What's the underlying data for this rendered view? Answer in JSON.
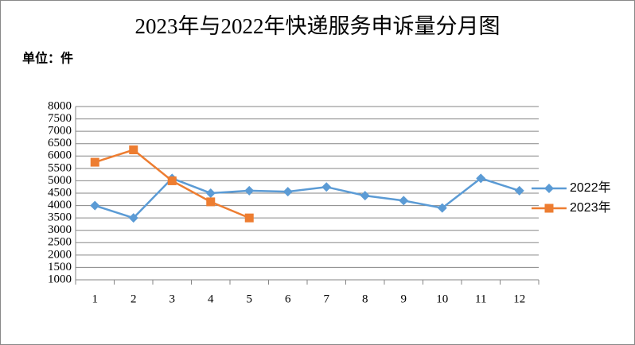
{
  "chart_data": {
    "type": "line",
    "title": "2023年与2022年快递服务申诉量分月图",
    "subtitle": "单位：件",
    "categories": [
      "1",
      "2",
      "3",
      "4",
      "5",
      "6",
      "7",
      "8",
      "9",
      "10",
      "11",
      "12"
    ],
    "series": [
      {
        "name": "2022年",
        "color": "#5b9bd5",
        "marker": "diamond",
        "values": [
          4000,
          3500,
          5100,
          4500,
          4600,
          4560,
          4750,
          4400,
          4200,
          3900,
          5100,
          4600
        ]
      },
      {
        "name": "2023年",
        "color": "#ed7d31",
        "marker": "square",
        "values": [
          5750,
          6250,
          5000,
          4150,
          3500,
          null,
          null,
          null,
          null,
          null,
          null,
          null
        ]
      }
    ],
    "ylim": [
      1000,
      8000
    ],
    "yticks": [
      1000,
      1500,
      2000,
      2500,
      3000,
      3500,
      4000,
      4500,
      5000,
      5500,
      6000,
      6500,
      7000,
      7500,
      8000
    ],
    "grid": true,
    "legend": "right"
  }
}
